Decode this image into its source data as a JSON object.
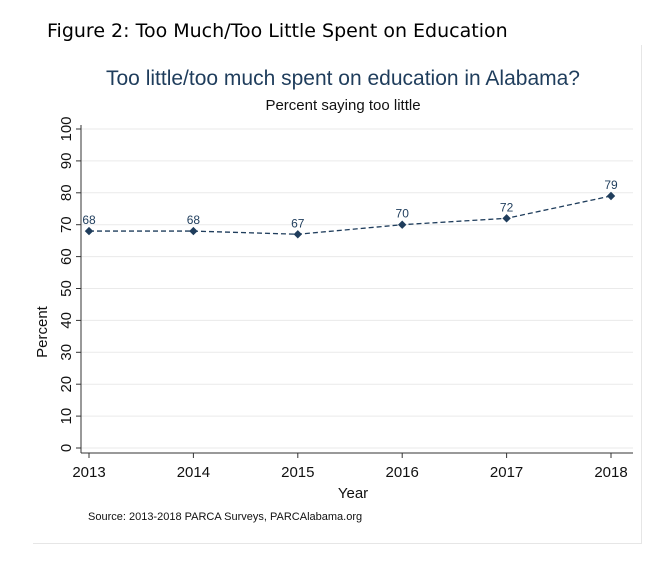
{
  "figure_heading": "Figure 2: Too Much/Too Little Spent on Education",
  "chart_data": {
    "type": "line",
    "title": "Too little/too much spent on education in Alabama?",
    "subtitle": "Percent saying too little",
    "xlabel": "Year",
    "ylabel": "Percent",
    "categories": [
      "2013",
      "2014",
      "2015",
      "2016",
      "2017",
      "2018"
    ],
    "series": [
      {
        "values": [
          68,
          68,
          67,
          70,
          72,
          79
        ]
      }
    ],
    "data_labels": [
      "68",
      "68",
      "67",
      "70",
      "72",
      "79"
    ],
    "y_ticks": [
      "0",
      "10",
      "20",
      "30",
      "40",
      "50",
      "60",
      "70",
      "80",
      "90",
      "100"
    ],
    "ylim": [
      0,
      100
    ],
    "grid": true,
    "line_style": "dashed",
    "marker": "diamond",
    "color": "#1f3d5c",
    "source": "Source: 2013-2018 PARCA Surveys, PARCAlabama.org"
  }
}
